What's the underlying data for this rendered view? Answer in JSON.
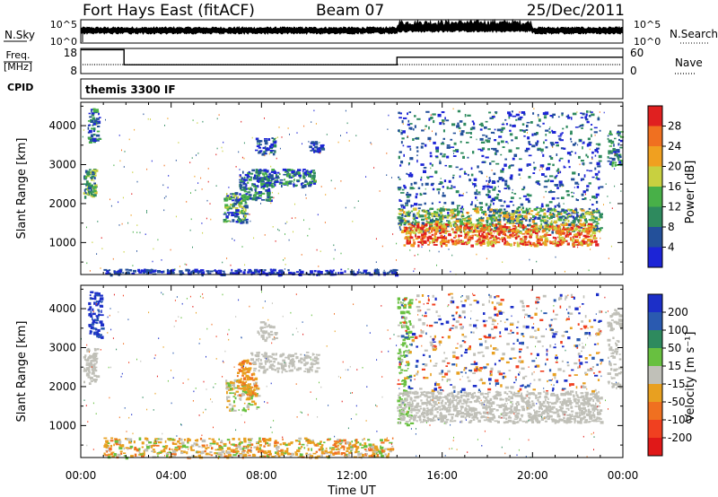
{
  "header": {
    "station": "Fort Hays East (fitACF)",
    "beam": "Beam 07",
    "date": "25/Dec/2011"
  },
  "strips": {
    "nsky_label": "N.Sky",
    "nsky_ticks": [
      "10^5",
      "10^0"
    ],
    "nsearch_label": "N.Search",
    "nsearch_ticks": [
      "10^5",
      "10^0"
    ],
    "freq_label_line1": "Freq.",
    "freq_label_line2": "[MHz]",
    "freq_ticks": [
      "18",
      "8"
    ],
    "nave_label": "Nave",
    "nave_ticks": [
      "60",
      "0"
    ],
    "cpid_label": "CPID",
    "cpid_value": "themis 3300 IF"
  },
  "chart_data": [
    {
      "type": "line",
      "name": "frequency",
      "ylabel": "Freq. [MHz]",
      "ylim": [
        8,
        18
      ],
      "x": [
        "00:00",
        "01:55",
        "01:55",
        "14:00",
        "14:00",
        "24:00"
      ],
      "y": [
        17.5,
        17.5,
        11.5,
        11.5,
        14.5,
        14.5
      ]
    },
    {
      "type": "heatmap",
      "name": "power",
      "title": "Fort Hays East (fitACF) Beam 07 25/Dec/2011",
      "ylabel": "Slant Range [km]",
      "xlabel": "Time UT",
      "xlim": [
        "00:00",
        "24:00"
      ],
      "ylim": [
        180,
        4600
      ],
      "x_ticks": [
        "00:00",
        "04:00",
        "08:00",
        "12:00",
        "16:00",
        "20:00",
        "00:00"
      ],
      "y_ticks": [
        1000,
        2000,
        3000,
        4000
      ],
      "colorbar": {
        "label": "Power [dB]",
        "ticks": [
          4,
          8,
          12,
          16,
          20,
          24,
          28
        ],
        "colors": [
          "#1c24d6",
          "#23509a",
          "#2e8a5e",
          "#48b048",
          "#c8d040",
          "#f0a020",
          "#f07020",
          "#e02020"
        ]
      }
    },
    {
      "type": "heatmap",
      "name": "velocity",
      "ylabel": "Slant Range [km]",
      "xlabel": "Time UT",
      "xlim": [
        "00:00",
        "24:00"
      ],
      "ylim": [
        180,
        4600
      ],
      "x_ticks": [
        "00:00",
        "04:00",
        "08:00",
        "12:00",
        "16:00",
        "20:00",
        "00:00"
      ],
      "y_ticks": [
        1000,
        2000,
        3000,
        4000
      ],
      "colorbar": {
        "label": "Velocity [m s⁻¹]",
        "ticks": [
          200,
          100,
          50,
          15,
          -15,
          -50,
          -100,
          -200
        ],
        "colors": [
          "#1c2fc8",
          "#2a5ab0",
          "#2e8a5e",
          "#68c040",
          "#c0c0b8",
          "#e8a020",
          "#f07020",
          "#f04020",
          "#e01818"
        ]
      }
    }
  ],
  "x_axis": {
    "ticks": [
      "00:00",
      "04:00",
      "08:00",
      "12:00",
      "16:00",
      "20:00",
      "00:00"
    ],
    "label": "Time UT"
  },
  "colors": {
    "axis": "#000000",
    "trace": "#000000"
  }
}
